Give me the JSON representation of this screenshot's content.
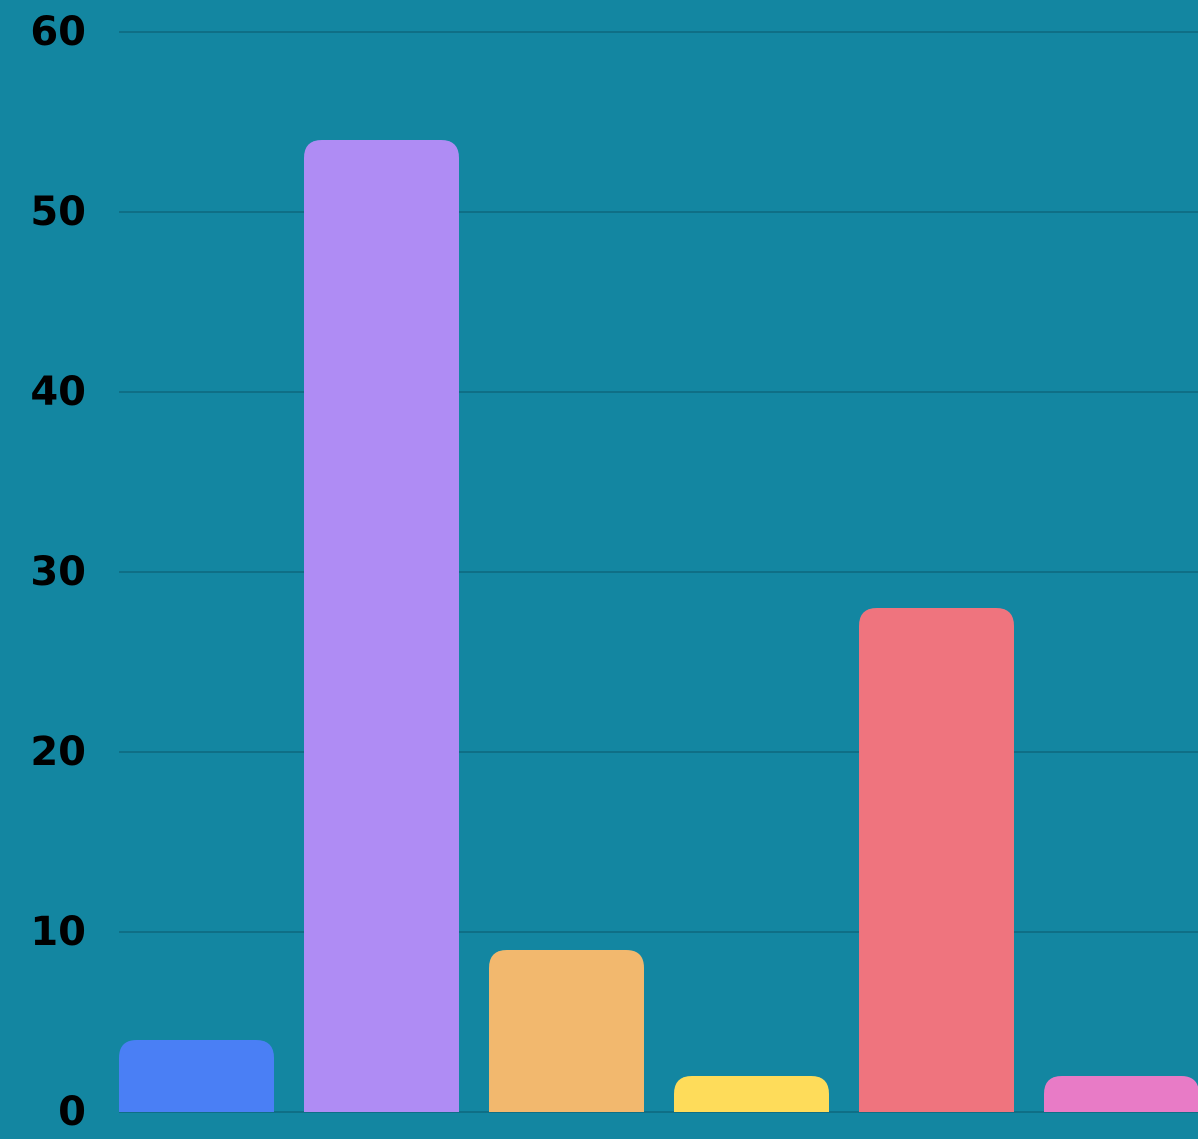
{
  "chart_data": {
    "type": "bar",
    "categories": [
      null,
      null,
      null,
      null,
      null,
      null
    ],
    "values": [
      4,
      54,
      9,
      2,
      28,
      2
    ],
    "colors": [
      "#4a7ff5",
      "#af8cf4",
      "#f2b86e",
      "#fedc5a",
      "#ef747e",
      "#e87bc6"
    ],
    "ylim": [
      0,
      60
    ],
    "yticks": [
      0,
      10,
      20,
      30,
      40,
      50,
      60
    ],
    "grid": true
  }
}
